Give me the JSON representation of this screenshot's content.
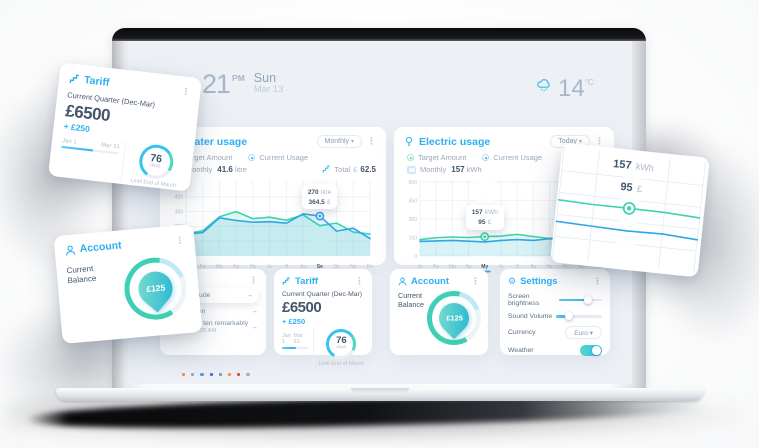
{
  "colors": {
    "accent_cyan": "#2cb1f2",
    "teal_green": "#3ed3ae",
    "blue_line": "#2fa6e8",
    "text_dark": "#44566c",
    "text_muted": "#9aa9bc",
    "text_light": "#b9c4d2",
    "screen_bg": "#edf1f6"
  },
  "icons": {
    "kebab": "⋮",
    "caret": "▾",
    "arrow": "→",
    "gear": "⚙"
  },
  "topbar": {
    "time": "21",
    "meridiem": "PM",
    "day": "Sun",
    "date": "Mar 13",
    "temperature": "14",
    "temp_unit": "°C"
  },
  "water_panel": {
    "title": "Water usage",
    "range_dropdown": "Monthly",
    "legend": [
      {
        "label": "Target Amount"
      },
      {
        "label": "Current Usage"
      }
    ],
    "period_label": "Monthly",
    "period_value": "41.6",
    "period_unit": "litre",
    "total_label": "Total",
    "total_currency": "£",
    "total_value": "62.5"
  },
  "electric_panel": {
    "title": "Electric usage",
    "range_dropdown": "Today",
    "legend": [
      {
        "label": "Target Amount"
      },
      {
        "label": "Current Usage"
      }
    ],
    "period_label": "Monthly",
    "period_value": "157",
    "period_unit": "kWh"
  },
  "chart_data": [
    {
      "id": "water-usage",
      "type": "line",
      "title": "Water usage",
      "months": [
        "Ja",
        "Fe",
        "Ma",
        "Ap",
        "My",
        "Ju",
        "Jl",
        "Au",
        "Se",
        "Oc",
        "No",
        "De"
      ],
      "active_month": "Se",
      "ylim": [
        0,
        500
      ],
      "yticks": [
        400,
        300,
        200,
        100
      ],
      "grid": true,
      "series": [
        {
          "name": "Target Amount",
          "color": "#3ed3ae",
          "fill": "rgba(62,211,174,0.16)",
          "values": [
            150,
            170,
            265,
            300,
            252,
            262,
            242,
            278,
            205,
            222,
            162,
            148
          ]
        },
        {
          "name": "Current Usage",
          "color": "#2fa6e8",
          "fill": "rgba(47,166,232,0.14)",
          "values": [
            148,
            158,
            258,
            240,
            228,
            232,
            222,
            285,
            270,
            168,
            188,
            118
          ]
        }
      ],
      "marker": {
        "index": 8,
        "month": "Se",
        "series": "Current Usage",
        "value": 270,
        "color": "#2fa6e8",
        "highlight": true,
        "label_value": "270",
        "label_unit": "litre",
        "label_cost": "364.5",
        "label_currency": "£"
      }
    },
    {
      "id": "electric-usage",
      "type": "line",
      "title": "Electric usage",
      "months": [
        "Ja",
        "Fe",
        "Ma",
        "Ap",
        "My",
        "Ju",
        "Jl",
        "Au",
        "Se",
        "Oc",
        "No",
        "De"
      ],
      "active_month": "My",
      "ylim": [
        0,
        600
      ],
      "yticks": [
        600,
        450,
        300,
        150,
        0
      ],
      "grid": true,
      "series": [
        {
          "name": "Target Amount",
          "color": "#3ed3ae",
          "fill": "rgba(62,211,174,0.10)",
          "values": [
            132,
            148,
            154,
            150,
            157,
            162,
            175,
            158,
            142,
            165,
            172,
            178
          ]
        },
        {
          "name": "Current Usage",
          "color": "#2fa6e8",
          "fill": "rgba(47,166,232,0.10)",
          "values": [
            118,
            122,
            126,
            120,
            114,
            126,
            133,
            126,
            140,
            138,
            128,
            132
          ]
        }
      ],
      "marker": {
        "index": 4,
        "month": "My",
        "series": "Target Amount",
        "value": 157,
        "color": "#3ed3ae",
        "highlight": true,
        "label_value": "157",
        "label_unit": "kWh",
        "label_cost": "95",
        "label_currency": "£"
      }
    },
    {
      "id": "electric-usage-detail",
      "type": "line",
      "title": "Electric usage (zoom detail)",
      "ylim": [
        0,
        300
      ],
      "yticks": [
        60,
        120,
        180,
        240
      ],
      "ytick_labels": false,
      "grid_color": "#ddecf6",
      "series": [
        {
          "name": "Target Amount",
          "color": "#3ed3ae",
          "values": [
            160,
            157,
            157,
            156,
            151
          ]
        },
        {
          "name": "Current Usage",
          "color": "#2fa6e8",
          "values": [
            101,
            98,
            95,
            97,
            91
          ]
        }
      ],
      "marker": {
        "index": 2,
        "series": "Target Amount",
        "value": 157,
        "color": "#3ed3ae",
        "r": 5.5,
        "highlight": true,
        "label_value": "157",
        "label_unit": "kWh",
        "label_cost": "95",
        "label_currency": "£"
      }
    }
  ],
  "messages_card": {
    "items": [
      {
        "text": "se solicitude",
        "time": ""
      },
      {
        "text": "change man",
        "time": ""
      },
      {
        "text": "Indulgence ten remarkably",
        "time": "March 2, 11:20 AM"
      }
    ]
  },
  "tariff_card": {
    "title": "Tariff",
    "subtitle": "Current Quarter (Dec-Mar)",
    "amount": "£6500",
    "delta": "+ £250",
    "period_start": "Jan 1",
    "period_end": "Mar 31",
    "progress_pct": 55,
    "days_value": "76",
    "days_unit": "days",
    "note": "Until End of March"
  },
  "account_card": {
    "title": "Account",
    "balance_label": "Current Balance",
    "balance_value": "£125"
  },
  "settings_card": {
    "title": "Settings",
    "brightness_label": "Screen brightness",
    "brightness_pct": 68,
    "volume_label": "Sound Volume",
    "volume_pct": 28,
    "currency_label": "Currency",
    "currency_value": "Euro",
    "weather_label": "Weather",
    "weather_on": true
  },
  "dock_colors": [
    "#e8963f",
    "#9aa7b5",
    "#4aa3e8",
    "#3f6fd8",
    "#8a97a8",
    "#e8963f",
    "#d84f4f",
    "#a8b2c0"
  ]
}
